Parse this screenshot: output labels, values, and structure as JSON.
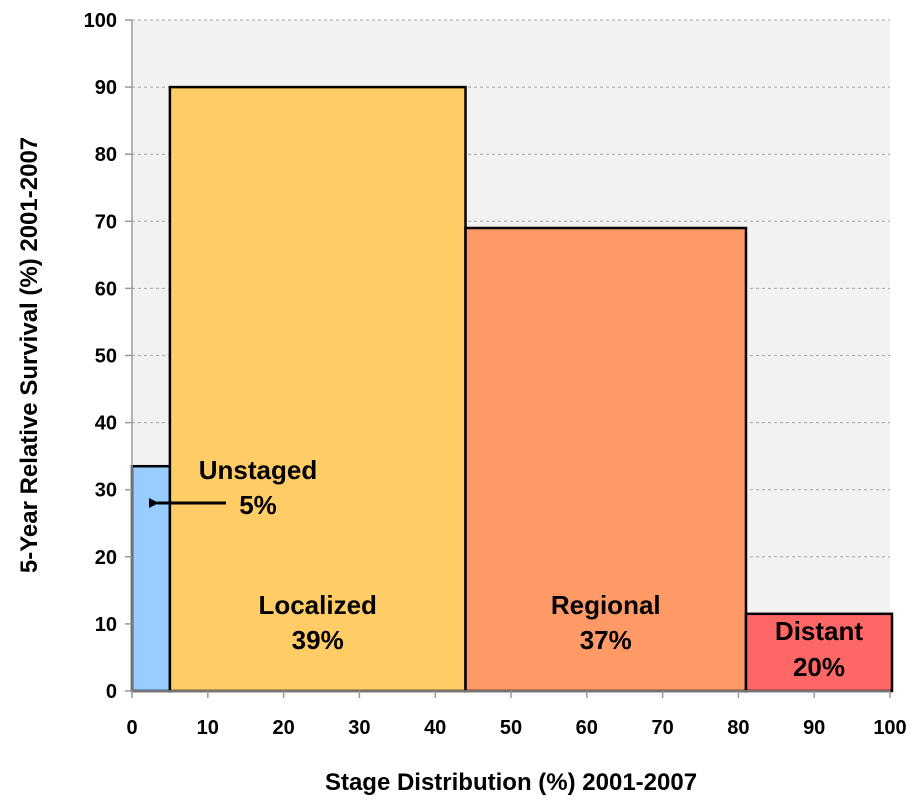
{
  "chart_data": {
    "type": "bar",
    "subtype": "variable-width",
    "xlabel": "Stage Distribution (%) 2001-2007",
    "ylabel": "5-Year Relative Survival (%) 2001-2007",
    "xlim": [
      0,
      100
    ],
    "ylim": [
      0,
      100
    ],
    "xticks": [
      0,
      10,
      20,
      30,
      40,
      50,
      60,
      70,
      80,
      90,
      100
    ],
    "yticks": [
      0,
      10,
      20,
      30,
      40,
      50,
      60,
      70,
      80,
      90,
      100
    ],
    "grid": "horizontal-dashed",
    "plot_background": "#f2f2f2",
    "bars": [
      {
        "category": "Unstaged",
        "label": "5%",
        "x_start": 0,
        "x_end": 5,
        "value": 33.5,
        "color": "#99ccff"
      },
      {
        "category": "Localized",
        "label": "39%",
        "x_start": 5,
        "x_end": 44,
        "value": 90,
        "color": "#ffcc66"
      },
      {
        "category": "Regional",
        "label": "37%",
        "x_start": 44,
        "x_end": 81,
        "value": 69,
        "color": "#ff9966"
      },
      {
        "category": "Distant",
        "label": "20%",
        "x_start": 81,
        "x_end": 101,
        "value": 11.5,
        "color": "#ff6666"
      }
    ],
    "annotation": {
      "target": "Unstaged",
      "arrow": "left"
    }
  }
}
